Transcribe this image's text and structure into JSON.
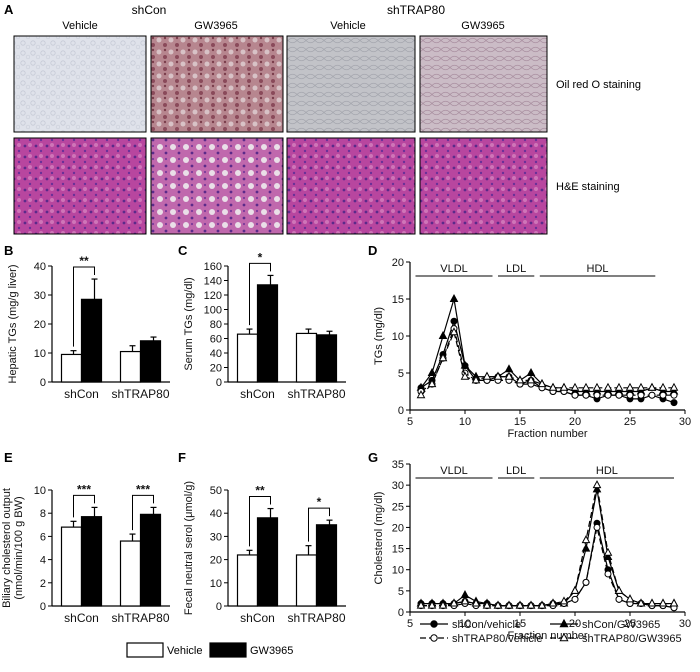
{
  "panel_letters": {
    "A": "A",
    "B": "B",
    "C": "C",
    "D": "D",
    "E": "E",
    "F": "F",
    "G": "G"
  },
  "panel_a": {
    "groups": [
      "shCon",
      "shTRAP80"
    ],
    "column_labels": [
      "Vehicle",
      "GW3965",
      "Vehicle",
      "GW3965"
    ],
    "row_labels": [
      "Oil red O staining",
      "H&E staining"
    ]
  },
  "legend": {
    "vehicle": "Vehicle",
    "gw3965": "GW3965"
  },
  "colors": {
    "vehicle": "#ffffff",
    "gw3965": "#000000",
    "oil_vehicle": "#d9dde8",
    "oil_gw": "#b27f8a",
    "oil_kd": "#bfc0c6",
    "oil_kd_gw": "#c7b9c4",
    "he": "#b13f9e"
  },
  "chart_data": [
    {
      "panel": "B",
      "type": "bar",
      "categories": [
        "shCon",
        "shTRAP80"
      ],
      "ylabel": "Hepatic TGs (mg/g liver)",
      "ylim": [
        0,
        40
      ],
      "yticks": [
        0,
        10,
        20,
        30,
        40
      ],
      "series": [
        {
          "name": "Vehicle",
          "values": [
            9.5,
            10.5
          ],
          "errors": [
            1.3,
            2.0
          ]
        },
        {
          "name": "GW3965",
          "values": [
            28.5,
            14.2
          ],
          "errors": [
            7.0,
            1.3
          ]
        }
      ],
      "annotations": [
        {
          "label": "**",
          "category": "shCon"
        }
      ]
    },
    {
      "panel": "C",
      "type": "bar",
      "categories": [
        "shCon",
        "shTRAP80"
      ],
      "ylabel": "Serum TGs (mg/dl)",
      "ylim": [
        0,
        160
      ],
      "yticks": [
        0,
        20,
        40,
        60,
        80,
        100,
        120,
        140,
        160
      ],
      "series": [
        {
          "name": "Vehicle",
          "values": [
            66,
            67
          ],
          "errors": [
            7,
            6
          ]
        },
        {
          "name": "GW3965",
          "values": [
            134,
            65
          ],
          "errors": [
            13,
            5
          ]
        }
      ],
      "annotations": [
        {
          "label": "*",
          "category": "shCon"
        }
      ]
    },
    {
      "panel": "E",
      "type": "bar",
      "categories": [
        "shCon",
        "shTRAP80"
      ],
      "ylabel": "Biliary cholesterol output (nmol/min/100 g BW)",
      "ylim": [
        0,
        10
      ],
      "yticks": [
        0,
        2,
        4,
        6,
        8,
        10
      ],
      "series": [
        {
          "name": "Vehicle",
          "values": [
            6.8,
            5.6
          ],
          "errors": [
            0.5,
            0.6
          ]
        },
        {
          "name": "GW3965",
          "values": [
            7.7,
            7.9
          ],
          "errors": [
            0.8,
            0.6
          ]
        }
      ],
      "annotations": [
        {
          "label": "***",
          "category": "shCon"
        },
        {
          "label": "***",
          "category": "shTRAP80"
        }
      ]
    },
    {
      "panel": "F",
      "type": "bar",
      "categories": [
        "shCon",
        "shTRAP80"
      ],
      "ylabel": "Fecal neutral serol (μmol/g)",
      "ylim": [
        0,
        50
      ],
      "yticks": [
        0,
        10,
        20,
        30,
        40,
        50
      ],
      "series": [
        {
          "name": "Vehicle",
          "values": [
            22,
            22
          ],
          "errors": [
            2,
            4
          ]
        },
        {
          "name": "GW3965",
          "values": [
            38,
            35
          ],
          "errors": [
            4,
            2
          ]
        }
      ],
      "annotations": [
        {
          "label": "**",
          "category": "shCon"
        },
        {
          "label": "*",
          "category": "shTRAP80"
        }
      ]
    },
    {
      "panel": "D",
      "type": "line",
      "xlabel": "Fraction number",
      "ylabel": "TGs (mg/dl)",
      "xlim": [
        5,
        30
      ],
      "ylim": [
        0,
        20
      ],
      "xticks": [
        5,
        10,
        15,
        20,
        25,
        30
      ],
      "yticks": [
        0,
        5,
        10,
        15,
        20
      ],
      "bands": [
        {
          "label": "VLDL",
          "from": 5.5,
          "to": 12.5
        },
        {
          "label": "LDL",
          "from": 13,
          "to": 16.3
        },
        {
          "label": "HDL",
          "from": 16.8,
          "to": 27.3
        }
      ],
      "x": [
        6,
        7,
        8,
        9,
        10,
        11,
        12,
        13,
        14,
        15,
        16,
        17,
        18,
        19,
        20,
        21,
        22,
        23,
        24,
        25,
        26,
        27,
        28,
        29
      ],
      "series": [
        {
          "name": "shCon/vehicle",
          "values": [
            3,
            4,
            7.5,
            12,
            6,
            4,
            4,
            4.5,
            4.5,
            3.5,
            4,
            3,
            2.5,
            2.5,
            2,
            2,
            1.5,
            2,
            2,
            1.5,
            1.5,
            2,
            1.5,
            1
          ]
        },
        {
          "name": "shCon/GW3965",
          "values": [
            3,
            5,
            10,
            15,
            6,
            4.5,
            4.5,
            4.5,
            5.5,
            4,
            5,
            3.5,
            3,
            3,
            2.5,
            2.5,
            2.5,
            2.5,
            2.5,
            2.5,
            2.5,
            3,
            2.5,
            2.5
          ]
        },
        {
          "name": "shTRAP80/vehicle",
          "values": [
            2.5,
            3.5,
            7,
            11,
            5,
            4,
            4,
            4,
            4,
            3.5,
            3.5,
            3,
            2.5,
            2.5,
            2,
            2,
            2,
            2,
            2,
            2,
            2,
            2,
            2,
            2
          ]
        },
        {
          "name": "shTRAP80/GW3965",
          "values": [
            2,
            3.5,
            7,
            10.5,
            4.5,
            4,
            4.5,
            4.5,
            4.5,
            4,
            4,
            3.5,
            3,
            3,
            3,
            3,
            3,
            3,
            3,
            3,
            3,
            3,
            3,
            3
          ]
        }
      ]
    },
    {
      "panel": "G",
      "type": "line",
      "xlabel": "Fraction number",
      "ylabel": "Cholesterol (mg/dl)",
      "xlim": [
        5,
        30
      ],
      "ylim": [
        0,
        35
      ],
      "xticks": [
        5,
        10,
        15,
        20,
        25,
        30
      ],
      "yticks": [
        0,
        5,
        10,
        15,
        20,
        25,
        30,
        35
      ],
      "bands": [
        {
          "label": "VLDL",
          "from": 5.5,
          "to": 12.5
        },
        {
          "label": "LDL",
          "from": 13,
          "to": 16.3
        },
        {
          "label": "HDL",
          "from": 16.8,
          "to": 29
        }
      ],
      "x": [
        6,
        7,
        8,
        9,
        10,
        11,
        12,
        13,
        14,
        15,
        16,
        17,
        18,
        19,
        20,
        21,
        22,
        23,
        24,
        25,
        26,
        27,
        28,
        29
      ],
      "series": [
        {
          "name": "shCon/vehicle",
          "values": [
            2,
            2,
            2,
            2,
            2.5,
            2,
            2,
            1.5,
            1.5,
            1.5,
            1.5,
            1.5,
            2,
            2,
            3,
            7,
            21,
            10,
            3,
            2,
            2,
            1.5,
            1.5,
            1
          ]
        },
        {
          "name": "shCon/GW3965",
          "values": [
            2,
            2,
            2,
            2,
            4,
            2.5,
            2,
            1.5,
            1.5,
            1.5,
            1.5,
            1.5,
            2,
            2,
            5,
            15,
            29,
            13,
            5,
            3,
            2,
            2,
            2,
            2
          ]
        },
        {
          "name": "shTRAP80/vehicle",
          "values": [
            1.5,
            1.5,
            1.5,
            1.5,
            2,
            1.5,
            1.5,
            1.5,
            1.5,
            1.5,
            1.5,
            1.5,
            1.5,
            2,
            3,
            7,
            20,
            9,
            3,
            2,
            2,
            1.5,
            1.5,
            1
          ]
        },
        {
          "name": "shTRAP80/GW3965",
          "values": [
            1.5,
            1.5,
            1.5,
            2,
            2.5,
            2,
            1.5,
            1.5,
            1.5,
            1.5,
            1.5,
            1.5,
            2,
            2.5,
            5,
            17,
            30,
            14,
            5,
            3,
            2,
            2,
            2,
            2
          ]
        }
      ],
      "legend": [
        "shCon/vehicle",
        "shCon/GW3965",
        "shTRAP80/vehicle",
        "shTRAP80/GW3965"
      ]
    }
  ]
}
